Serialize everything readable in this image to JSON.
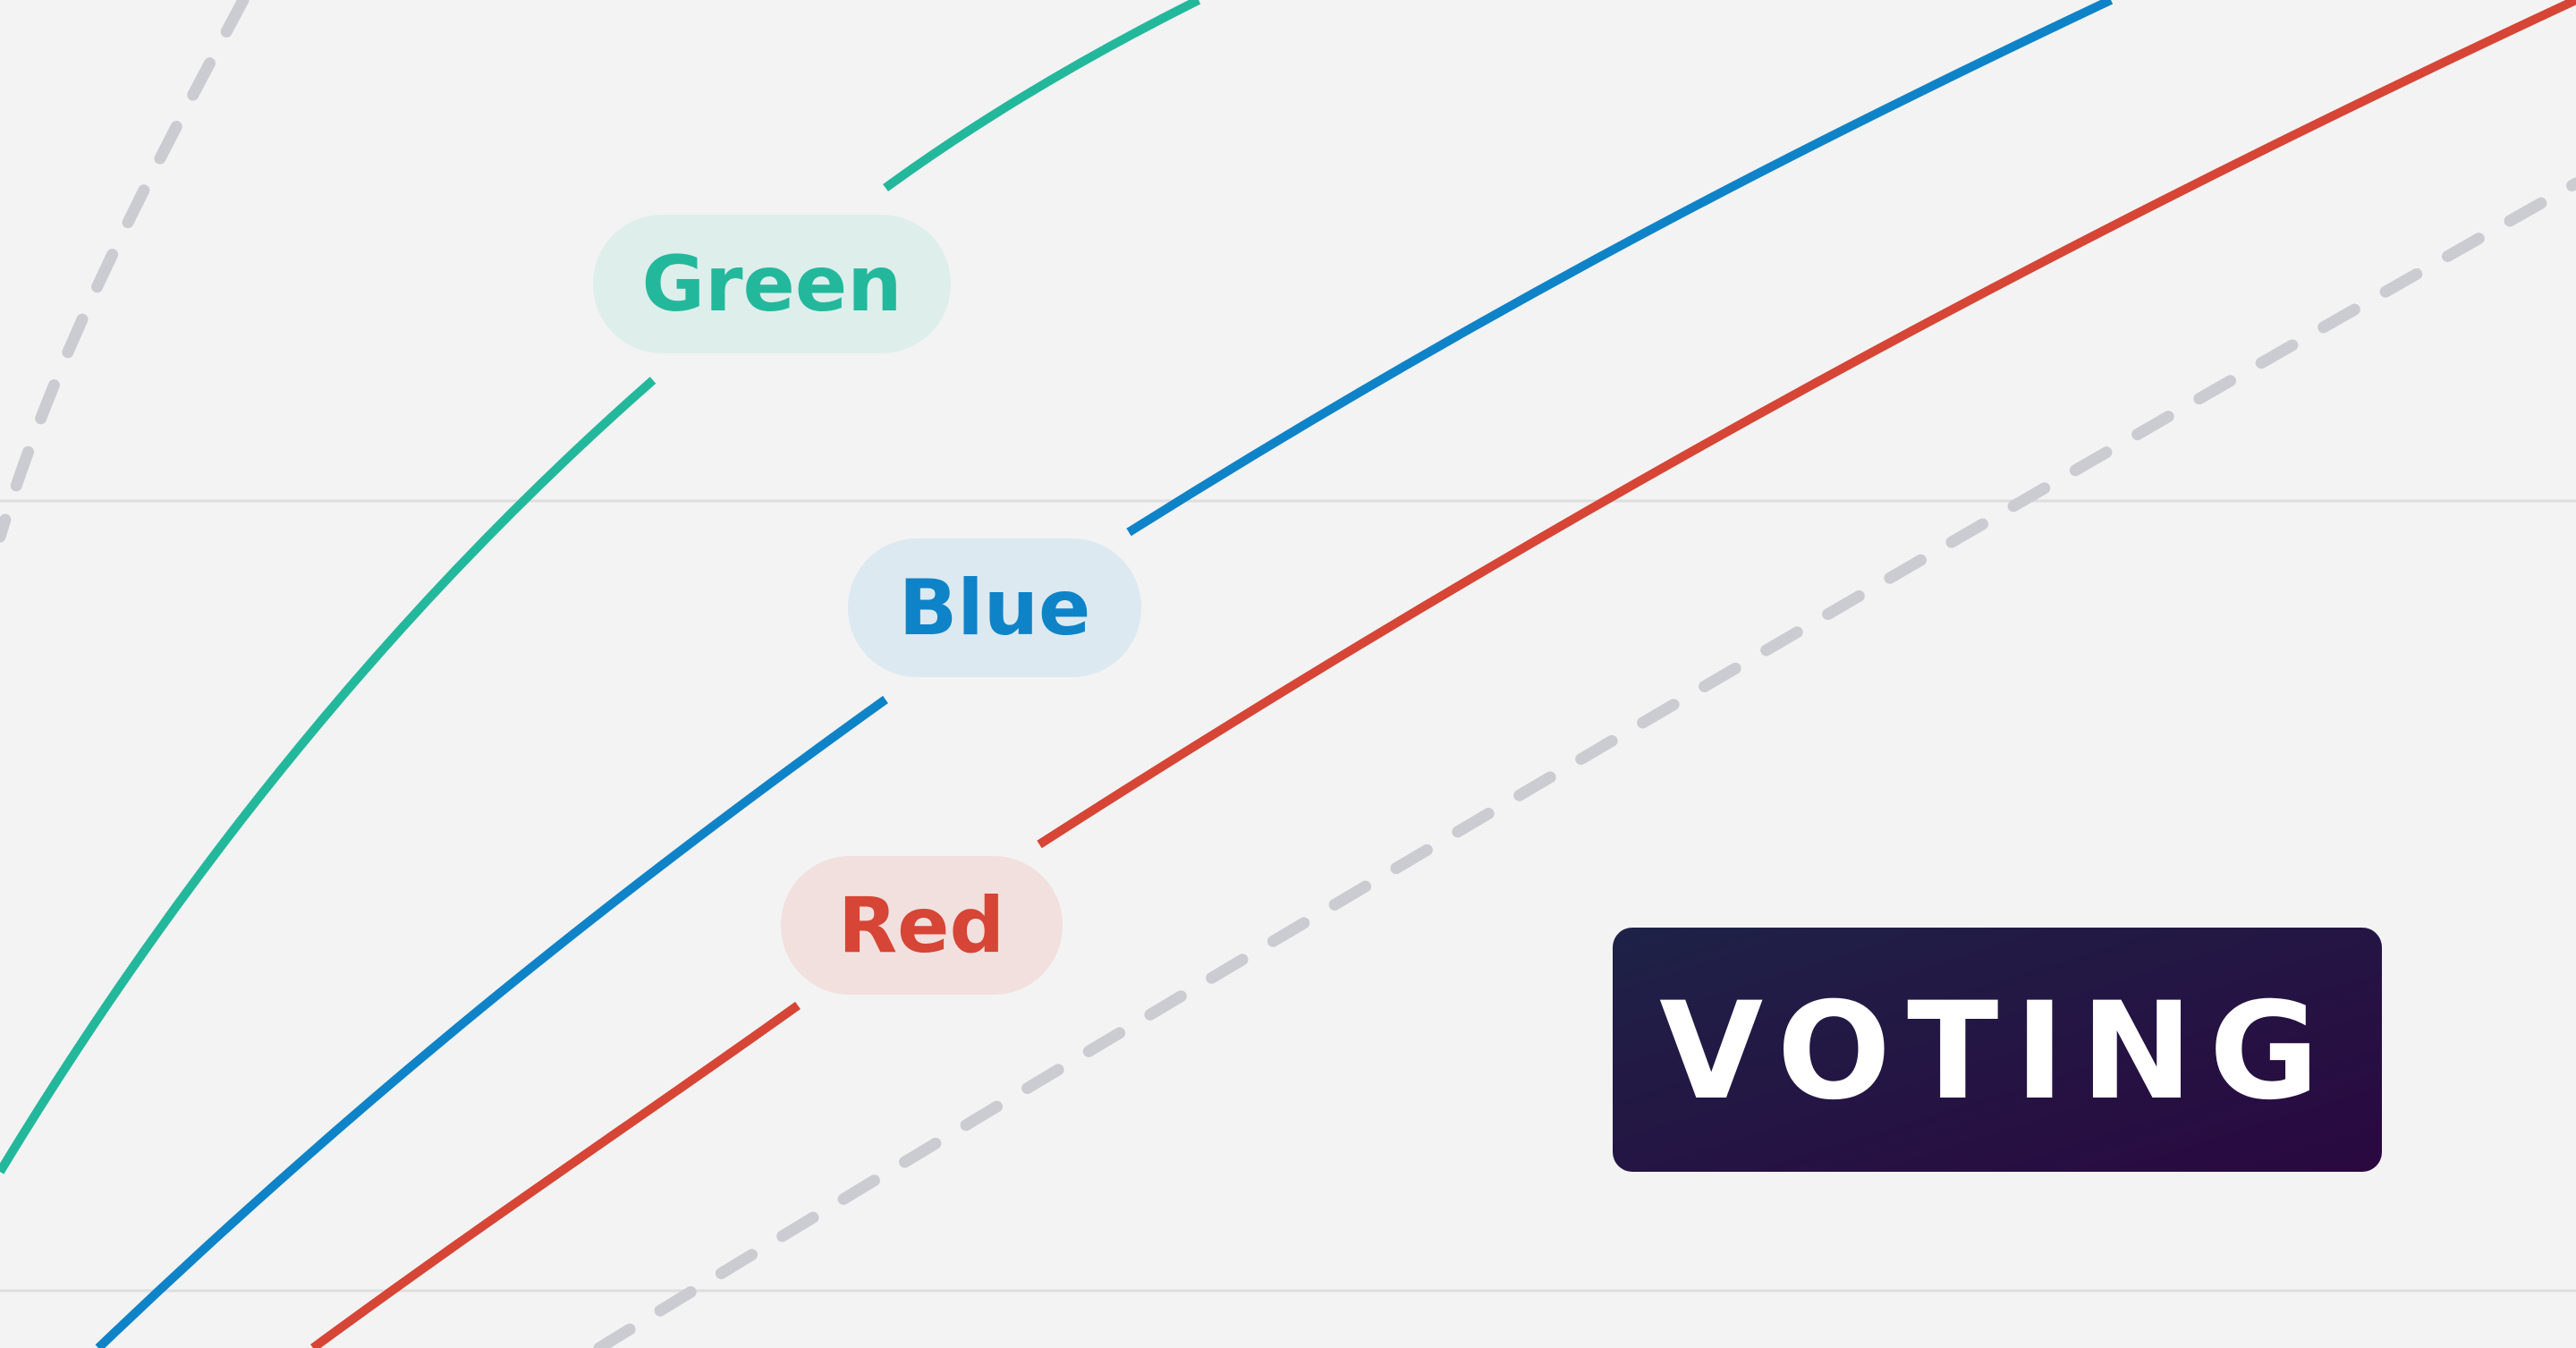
{
  "chart_data": {
    "type": "line",
    "title": "",
    "xlabel": "",
    "ylabel": "",
    "grid": true,
    "legend": "inline-labels",
    "series": [
      {
        "name": "Green",
        "color": "#23b89c",
        "style": "solid"
      },
      {
        "name": "Blue",
        "color": "#0e83c8",
        "style": "solid"
      },
      {
        "name": "Red",
        "color": "#d64535",
        "style": "solid"
      },
      {
        "color": "#cbcbd2",
        "style": "dashed"
      },
      {
        "color": "#cbcbd2",
        "style": "dashed"
      }
    ]
  },
  "badge": {
    "label": "VOTING",
    "gradient_start": "#1e2247",
    "gradient_end": "#2a0840",
    "text_color": "#ffffff"
  },
  "colors": {
    "background": "#f3f3f3",
    "gridline": "#dedede",
    "green_pill_bg": "#deeeeb",
    "blue_pill_bg": "#dce9f0",
    "red_pill_bg": "#f1e0de"
  }
}
